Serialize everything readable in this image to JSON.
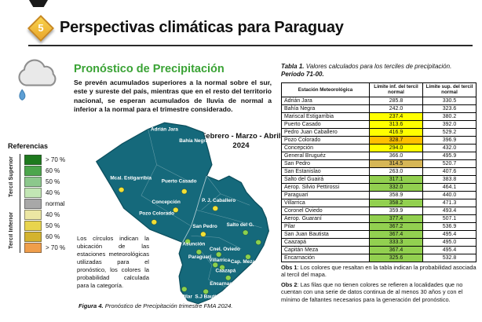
{
  "header": {
    "slide_number": "5",
    "title": "Perspectivas climáticas para Paraguay"
  },
  "colors": {
    "section_green": "#3aa335",
    "map_land": "#15697b",
    "map_border": "#0c4f5e"
  },
  "left": {
    "section_title": "Pronóstico de Precipitación",
    "summary": "Se prevén acumulados superiores a la normal sobre el sur, este y sureste del país, mientras que en el resto del territorio nacional, se esperan acumulados de lluvia de normal a inferior a la normal para el trimestre considerado.",
    "period": "Febrero - Marzo - Abril 2024",
    "legend": {
      "title": "Referencias",
      "upper_label": "Tercil Superior",
      "lower_label": "Tercil Inferior",
      "items": [
        {
          "label": "> 70 %",
          "color": "#1e7a1e"
        },
        {
          "label": "60 %",
          "color": "#4ca64c"
        },
        {
          "label": "50 %",
          "color": "#8cc88c"
        },
        {
          "label": "40 %",
          "color": "#c2e6b4"
        },
        {
          "label": "normal",
          "color": "#a8a8a8"
        },
        {
          "label": "40 %",
          "color": "#ece7a3"
        },
        {
          "label": "50 %",
          "color": "#e8d44d"
        },
        {
          "label": "60 %",
          "color": "#d4b32e"
        },
        {
          "label": "> 70 %",
          "color": "#ef9e4b"
        }
      ]
    },
    "map_note": "Los círculos indican la ubicación de las estaciones meteorológicas utilizadas para el pronóstico, los colores la probabilidad calculada para la categoría.",
    "figure_label": "Figura 4.",
    "figure_text": " Pronóstico de Precipitación trimestre FMA 2024.",
    "map": {
      "stations": [
        {
          "name": "Adrián Jara",
          "label": [
            87,
            20
          ]
        },
        {
          "name": "Bahía Negra",
          "label": [
            121,
            34
          ]
        },
        {
          "name": "Mcal. Estigarribia",
          "label": [
            48,
            80
          ],
          "dot": [
            37,
            93
          ],
          "color": "#f2e035"
        },
        {
          "name": "Puerto Casado",
          "label": [
            104,
            84
          ],
          "dot": [
            110,
            95
          ],
          "color": "#f2e035"
        },
        {
          "name": "Concepción",
          "label": [
            89,
            110
          ],
          "dot": [
            100,
            118
          ],
          "color": "#f2e035"
        },
        {
          "name": "P. J. Caballero",
          "label": [
            150,
            108
          ],
          "dot": [
            146,
            116
          ],
          "color": "#f2e035"
        },
        {
          "name": "Pozo Colorado",
          "label": [
            78,
            124
          ],
          "dot": [
            75,
            133
          ],
          "color": "#f2e035"
        },
        {
          "name": "San Pedro",
          "label": [
            134,
            140
          ],
          "dot": [
            132,
            148
          ],
          "color": "#f2e035"
        },
        {
          "name": "Salto del G.",
          "label": [
            175,
            138
          ],
          "dot": [
            181,
            146
          ],
          "color": "#8bd14f"
        },
        {
          "name": "Asunción",
          "label": [
            121,
            162
          ],
          "dot": [
            114,
            157
          ],
          "color": "#8bd14f"
        },
        {
          "name": "Cnel. Oviedo",
          "label": [
            157,
            168
          ],
          "dot": [
            150,
            173
          ],
          "color": "#8bd14f"
        },
        {
          "name": "Paraguarí",
          "label": [
            128,
            178
          ],
          "dot": [
            127,
            170
          ],
          "color": "#8bd14f"
        },
        {
          "name": "Villarrica",
          "label": [
            151,
            182
          ],
          "dot": [
            146,
            186
          ],
          "color": "#8bd14f"
        },
        {
          "name": "Caazapá",
          "label": [
            158,
            195
          ],
          "dot": [
            154,
            189
          ],
          "color": "#8bd14f"
        },
        {
          "name": "Cap. Meza",
          "label": [
            178,
            184
          ],
          "dot": [
            184,
            176
          ],
          "color": "#8bd14f"
        },
        {
          "name": "Encarnación",
          "label": [
            157,
            211
          ],
          "dot": [
            161,
            202
          ],
          "color": "#8bd14f"
        },
        {
          "name": "S.J Bautista",
          "label": [
            139,
            227
          ],
          "dot": [
            135,
            219
          ],
          "color": "#8bd14f"
        },
        {
          "name": "Pilar",
          "label": [
            113,
            227
          ],
          "dot": [
            110,
            216
          ],
          "color": "#8bd14f"
        },
        {
          "dot": [
            196,
            158
          ],
          "color": "#8bd14f"
        }
      ]
    }
  },
  "right": {
    "table_label": "Tabla 1.",
    "table_text": " Valores calculados para los terciles de precipitación.",
    "table_period": "Período 71-00.",
    "table": {
      "headers": [
        "Estación Meteorológica",
        "Límite inf. del tercil normal",
        "Límite sup. del tercil normal"
      ],
      "rows": [
        {
          "station": "Adrián Jara",
          "inf": "285.8",
          "sup": "330.5",
          "hl": null
        },
        {
          "station": "Bahía Negra",
          "inf": "242.0",
          "sup": "323.6",
          "hl": null
        },
        {
          "station": "Mariscal Estigarribia",
          "inf": "237.4",
          "sup": "380.2",
          "hl": "#ffff00"
        },
        {
          "station": "Puerto Casado",
          "inf": "313.6",
          "sup": "392.0",
          "hl": "#ffff00"
        },
        {
          "station": "Pedro Juan Caballero",
          "inf": "416.9",
          "sup": "529.2",
          "hl": "#ffff00"
        },
        {
          "station": "Pozo Colorado",
          "inf": "328.7",
          "sup": "396.9",
          "hl": "#ffc000"
        },
        {
          "station": "Concepción",
          "inf": "294.0",
          "sup": "432.0",
          "hl": "#ffff00"
        },
        {
          "station": "General Bruguéz",
          "inf": "366.0",
          "sup": "495.9",
          "hl": null
        },
        {
          "station": "San Pedro",
          "inf": "314.5",
          "sup": "520.7",
          "hl": "#d6b656"
        },
        {
          "station": "San Estanislao",
          "inf": "263.0",
          "sup": "407.6",
          "hl": null
        },
        {
          "station": "Salto del Guairá",
          "inf": "317.1",
          "sup": "383.8",
          "hl": "#92d050"
        },
        {
          "station": "Aerop. Silvio Pettirossi",
          "inf": "332.0",
          "sup": "464.1",
          "hl": "#92d050"
        },
        {
          "station": "Paraguarí",
          "inf": "358.9",
          "sup": "440.0",
          "hl": null
        },
        {
          "station": "Villarrica",
          "inf": "358.2",
          "sup": "471.3",
          "hl": "#92d050"
        },
        {
          "station": "Coronel Oviedo",
          "inf": "359.9",
          "sup": "493.4",
          "hl": null
        },
        {
          "station": "Aerop. Guaraní",
          "inf": "377.4",
          "sup": "507.1",
          "hl": "#92d050"
        },
        {
          "station": "Pilar",
          "inf": "367.2",
          "sup": "536.9",
          "hl": "#92d050"
        },
        {
          "station": "San Juan Bautista",
          "inf": "367.4",
          "sup": "495.4",
          "hl": "#92d050"
        },
        {
          "station": "Caazapá",
          "inf": "333.3",
          "sup": "495.0",
          "hl": "#92d050"
        },
        {
          "station": "Capitán Meza",
          "inf": "367.4",
          "sup": "495.4",
          "hl": "#92d050"
        },
        {
          "station": "Encarnación",
          "inf": "325.6",
          "sup": "532.8",
          "hl": "#92d050"
        }
      ]
    },
    "obs1_label": "Obs 1",
    "obs1_text": ": Los colores que resaltan en la tabla indican la probabilidad asociada al tercil del mapa.",
    "obs2_label": "Obs 2",
    "obs2_text": ": Las filas que no tienen colores se refieren a localidades que no cuentan con una serie de datos continua de al menos 30 años y con el mínimo de faltantes necesarios para la generación del pronóstico."
  }
}
